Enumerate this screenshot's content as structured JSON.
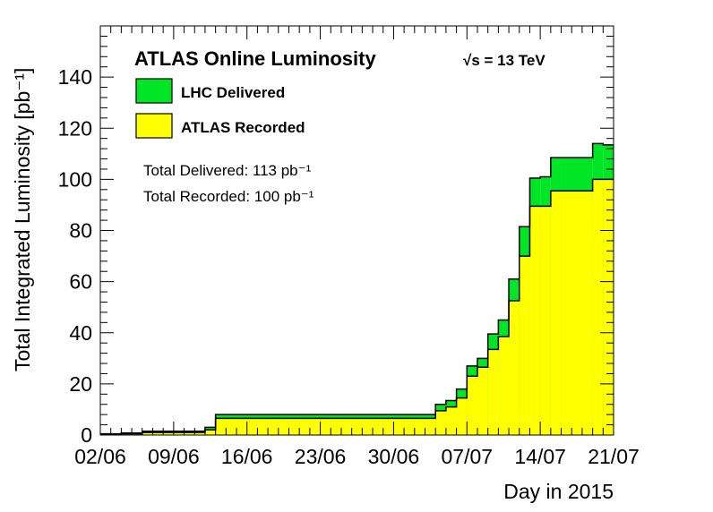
{
  "chart_data": {
    "type": "area",
    "title": "ATLAS Online Luminosity",
    "energy_label": "√s = 13 TeV",
    "xlabel": "Day in 2015",
    "ylabel": "Total Integrated Luminosity [pb⁻¹]",
    "ylim": [
      0,
      160
    ],
    "yticks": [
      0,
      20,
      40,
      60,
      80,
      100,
      120,
      140
    ],
    "xlim": [
      0,
      49
    ],
    "xtick_labels": [
      "02/06",
      "09/06",
      "16/06",
      "23/06",
      "30/06",
      "07/07",
      "14/07",
      "21/07"
    ],
    "xtick_days": [
      0,
      7,
      14,
      21,
      28,
      35,
      42,
      49
    ],
    "grid": false,
    "legend_position": "top-left",
    "series": [
      {
        "name": "LHC Delivered",
        "color": "#00e526",
        "day_edges": [
          0,
          2,
          4,
          10,
          11,
          31,
          32,
          33,
          34,
          35,
          36,
          37,
          38,
          39,
          40,
          41,
          42,
          43,
          44,
          47,
          48,
          49
        ],
        "values": [
          0.5,
          0.8,
          1.5,
          3.0,
          8.0,
          8.0,
          12.0,
          13.5,
          18.0,
          27.0,
          30.0,
          39.5,
          45.0,
          61.0,
          81.5,
          100.5,
          101.0,
          108.5,
          108.5,
          114.0,
          113.5
        ]
      },
      {
        "name": "ATLAS Recorded",
        "color": "#ffff00",
        "day_edges": [
          0,
          2,
          4,
          10,
          11,
          31,
          32,
          33,
          34,
          35,
          36,
          37,
          38,
          39,
          40,
          41,
          42,
          43,
          44,
          47,
          48,
          49
        ],
        "values": [
          0.3,
          0.5,
          1.0,
          2.0,
          6.5,
          6.5,
          9.5,
          11.0,
          14.5,
          23.0,
          26.5,
          33.5,
          38.5,
          52.5,
          70.0,
          89.5,
          89.5,
          95.5,
          95.5,
          100.0,
          100.0
        ]
      }
    ],
    "totals": {
      "delivered_label": "Total Delivered: 113 pb⁻¹",
      "recorded_label": "Total Recorded: 100 pb⁻¹"
    }
  }
}
